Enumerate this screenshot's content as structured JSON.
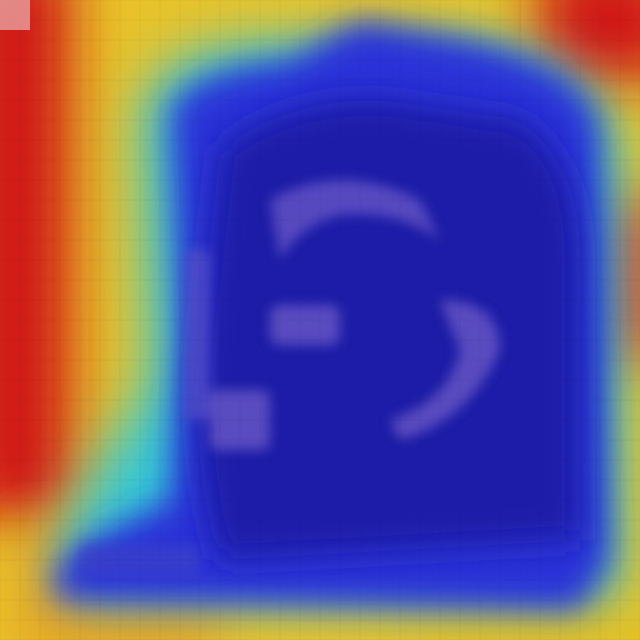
{
  "image": {
    "kind": "activation-heatmap-overlay",
    "colormap": "jet",
    "colors": {
      "hot": "#d01818",
      "warm": "#f0c020",
      "mid": "#30c0d0",
      "cool": "#2830d8",
      "deep": "#1a1fa8",
      "overlay_tint": "#6a58c8"
    }
  }
}
